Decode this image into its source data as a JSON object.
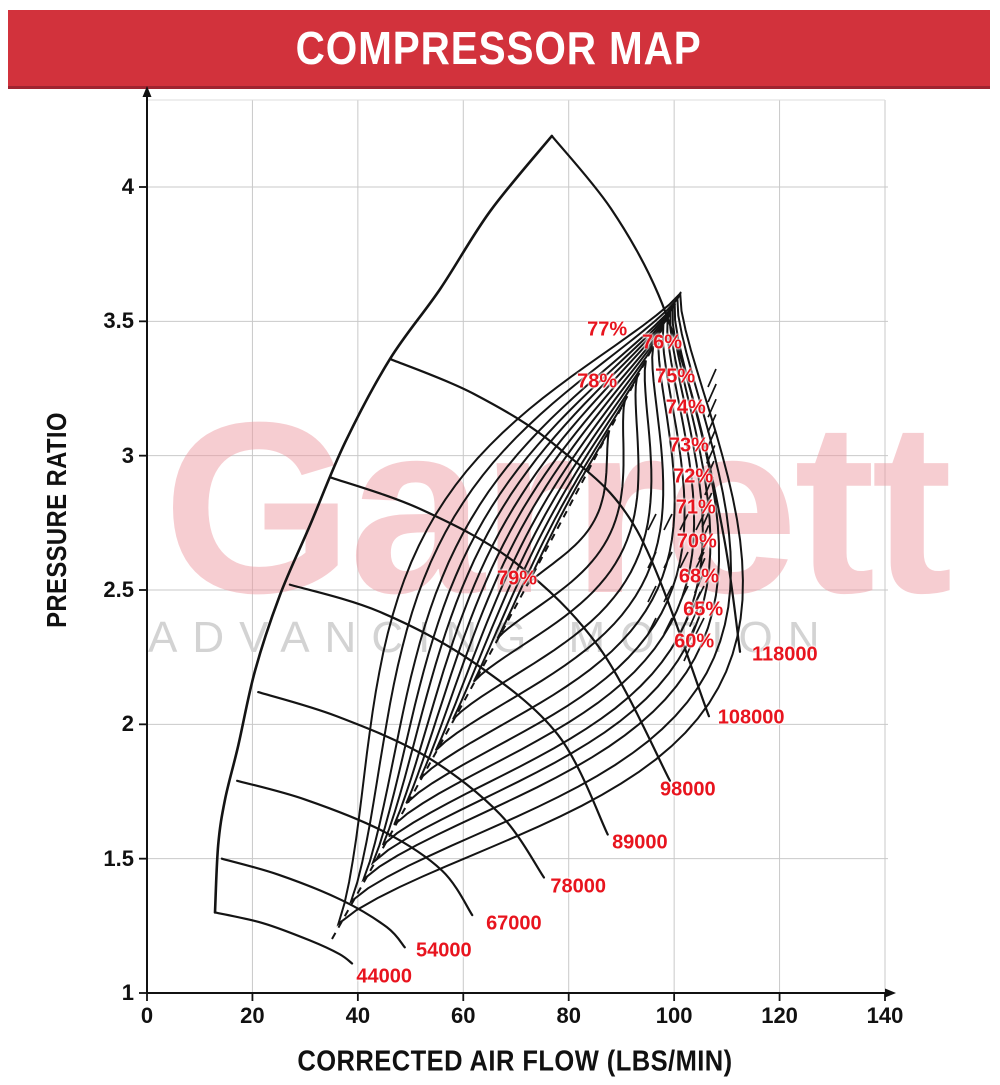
{
  "header": {
    "title": "COMPRESSOR MAP"
  },
  "watermark": {
    "word": "Garrett",
    "tagline": "ADVANCING MOTION"
  },
  "colors": {
    "banner_red": "#d2323c",
    "banner_edge": "#9f2430",
    "label_red": "#e8141e",
    "curve_black": "#141414",
    "grid_gray": "#c9c9c9",
    "watermark_pink": "#ee99a0",
    "tagline_gray": "#d0d0d0"
  },
  "chart_data": {
    "type": "line",
    "title": "COMPRESSOR MAP",
    "xlabel": "CORRECTED AIR FLOW (LBS/MIN)",
    "ylabel": "PRESSURE RATIO",
    "xlim": [
      0,
      140
    ],
    "ylim": [
      1,
      4.3
    ],
    "grid": true,
    "x_ticks": [
      0,
      20,
      40,
      60,
      80,
      100,
      120,
      140
    ],
    "y_ticks": [
      1,
      1.5,
      2,
      2.5,
      3,
      3.5,
      4
    ],
    "surge_line": [
      [
        12.9,
        1.3
      ],
      [
        13.5,
        1.55
      ],
      [
        14.8,
        1.72
      ],
      [
        17.3,
        1.92
      ],
      [
        20.5,
        2.2
      ],
      [
        25.2,
        2.48
      ],
      [
        30.9,
        2.74
      ],
      [
        37.6,
        3.05
      ],
      [
        46.1,
        3.36
      ],
      [
        55.6,
        3.62
      ],
      [
        65.1,
        3.91
      ],
      [
        76.8,
        4.19
      ]
    ],
    "series": [
      {
        "name": "44000",
        "points": [
          [
            12.9,
            1.3
          ],
          [
            22,
            1.26
          ],
          [
            31,
            1.195
          ],
          [
            36.5,
            1.145
          ],
          [
            38.9,
            1.11
          ]
        ]
      },
      {
        "name": "54000",
        "points": [
          [
            14.2,
            1.5
          ],
          [
            25,
            1.44
          ],
          [
            37,
            1.345
          ],
          [
            45.5,
            1.245
          ],
          [
            48.9,
            1.17
          ]
        ]
      },
      {
        "name": "67000",
        "points": [
          [
            17.1,
            1.79
          ],
          [
            30,
            1.72
          ],
          [
            45,
            1.6
          ],
          [
            56,
            1.455
          ],
          [
            61.7,
            1.29
          ]
        ]
      },
      {
        "name": "78000",
        "points": [
          [
            21.1,
            2.12
          ],
          [
            36,
            2.03
          ],
          [
            53,
            1.88
          ],
          [
            67,
            1.665
          ],
          [
            75.3,
            1.43
          ]
        ]
      },
      {
        "name": "89000",
        "points": [
          [
            27.1,
            2.52
          ],
          [
            44,
            2.42
          ],
          [
            62,
            2.23
          ],
          [
            78,
            1.96
          ],
          [
            87.4,
            1.59
          ]
        ]
      },
      {
        "name": "98000",
        "points": [
          [
            34.7,
            2.92
          ],
          [
            52,
            2.8
          ],
          [
            70,
            2.6
          ],
          [
            86,
            2.28
          ],
          [
            99.2,
            1.79
          ]
        ]
      },
      {
        "name": "108000",
        "points": [
          [
            46.1,
            3.36
          ],
          [
            62,
            3.23
          ],
          [
            78,
            3.03
          ],
          [
            93,
            2.72
          ],
          [
            106.6,
            2.03
          ]
        ]
      },
      {
        "name": "118000",
        "points": [
          [
            76.8,
            4.19
          ],
          [
            88,
            3.92
          ],
          [
            97,
            3.6
          ],
          [
            104,
            3.18
          ],
          [
            109.5,
            2.69
          ],
          [
            112.5,
            2.27
          ]
        ]
      }
    ],
    "efficiency_contours": {
      "peak": "79%",
      "levels": [
        "79%",
        "78%",
        "77%",
        "76%",
        "75%",
        "74%",
        "73%",
        "72%",
        "71%",
        "70%",
        "68%",
        "65%",
        "60%"
      ]
    },
    "efficiency_labels": [
      {
        "text": "79%",
        "flow": 70.2,
        "pr": 2.541
      },
      {
        "text": "78%",
        "flow": 85.4,
        "pr": 3.274
      },
      {
        "text": "77%",
        "flow": 87.3,
        "pr": 3.468
      },
      {
        "text": "76%",
        "flow": 97.7,
        "pr": 3.419
      },
      {
        "text": "75%",
        "flow": 100.2,
        "pr": 3.293
      },
      {
        "text": "74%",
        "flow": 102.2,
        "pr": 3.177
      },
      {
        "text": "73%",
        "flow": 102.8,
        "pr": 3.036
      },
      {
        "text": "72%",
        "flow": 103.6,
        "pr": 2.92
      },
      {
        "text": "71%",
        "flow": 104.1,
        "pr": 2.805
      },
      {
        "text": "70%",
        "flow": 104.3,
        "pr": 2.679
      },
      {
        "text": "68%",
        "flow": 104.7,
        "pr": 2.548
      },
      {
        "text": "65%",
        "flow": 105.5,
        "pr": 2.425
      },
      {
        "text": "60%",
        "flow": 103.8,
        "pr": 2.306
      }
    ],
    "speed_labels": [
      {
        "text": "44000",
        "flow": 45.0,
        "pr": 1.06
      },
      {
        "text": "54000",
        "flow": 56.3,
        "pr": 1.156
      },
      {
        "text": "67000",
        "flow": 69.6,
        "pr": 1.257
      },
      {
        "text": "78000",
        "flow": 81.8,
        "pr": 1.395
      },
      {
        "text": "89000",
        "flow": 93.5,
        "pr": 1.558
      },
      {
        "text": "98000",
        "flow": 102.6,
        "pr": 1.756
      },
      {
        "text": "108000",
        "flow": 114.6,
        "pr": 2.023
      },
      {
        "text": "118000",
        "flow": 121.0,
        "pr": 2.258
      }
    ]
  }
}
